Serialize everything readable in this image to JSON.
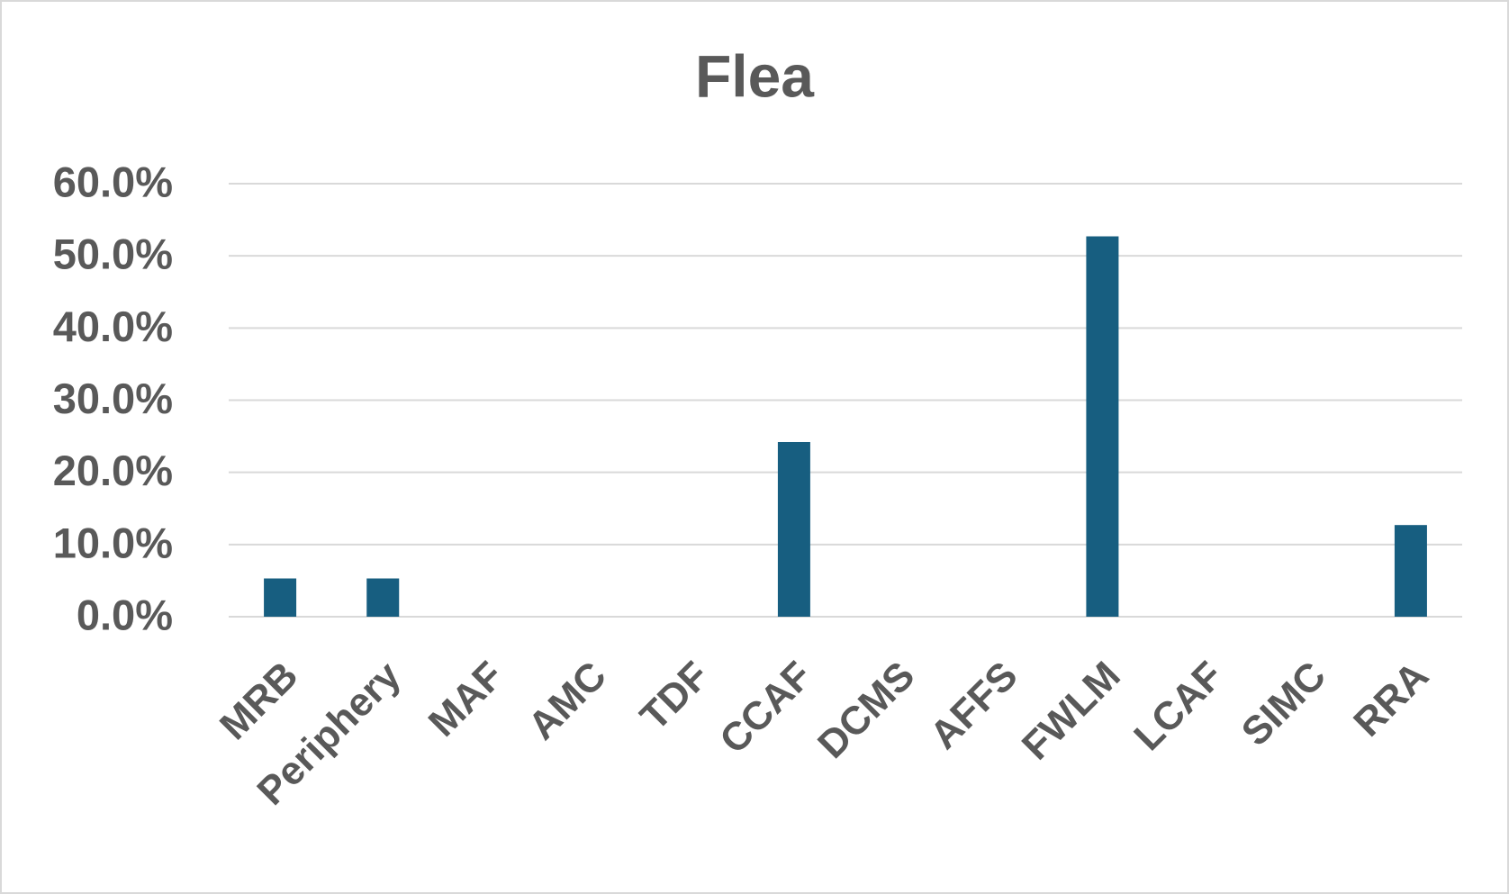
{
  "chart_data": {
    "type": "bar",
    "title": "Flea",
    "categories": [
      "MRB",
      "Periphery",
      "MAF",
      "AMC",
      "TDF",
      "CCAF",
      "DCMS",
      "AFFS",
      "FWLM",
      "LCAF",
      "SIMC",
      "RRA"
    ],
    "values": [
      5.3,
      5.3,
      0,
      0,
      0,
      24.2,
      0,
      0,
      52.7,
      0,
      0,
      12.7
    ],
    "color": "#175e80",
    "ylim": [
      0,
      60
    ],
    "yticks": [
      {
        "value": 0,
        "label": "0.0%"
      },
      {
        "value": 10,
        "label": "10.0%"
      },
      {
        "value": 20,
        "label": "20.0%"
      },
      {
        "value": 30,
        "label": "30.0%"
      },
      {
        "value": 40,
        "label": "40.0%"
      },
      {
        "value": 50,
        "label": "50.0%"
      },
      {
        "value": 60,
        "label": "60.0%"
      }
    ],
    "grid": true
  }
}
